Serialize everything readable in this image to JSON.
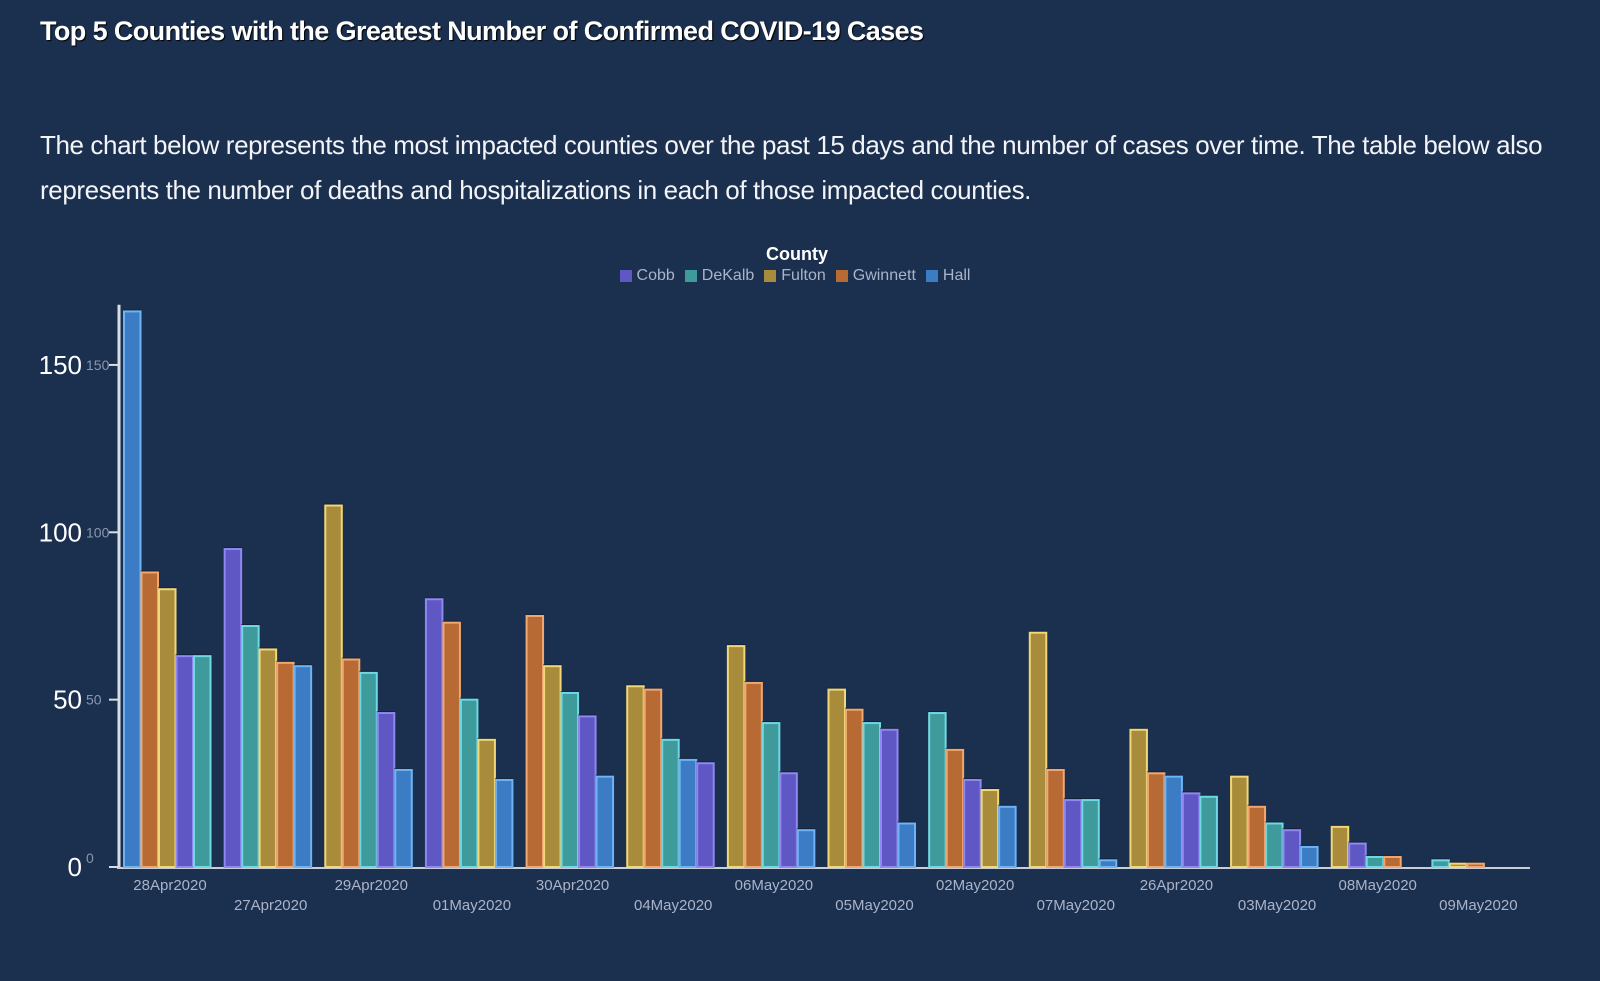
{
  "header": {
    "title": "Top 5 Counties with the Greatest Number of Confirmed COVID-19 Cases",
    "description": "The chart below represents the most impacted counties over the past 15 days and the number of cases over time. The table below also represents the number of deaths and hospitalizations in each of those impacted counties."
  },
  "legend": {
    "title": "County",
    "items": [
      {
        "name": "Cobb",
        "color": "#5f57c4"
      },
      {
        "name": "DeKalb",
        "color": "#3f9a9c"
      },
      {
        "name": "Fulton",
        "color": "#a88c3c"
      },
      {
        "name": "Gwinnett",
        "color": "#b86a35"
      },
      {
        "name": "Hall",
        "color": "#3b7cc4"
      }
    ]
  },
  "chart_data": {
    "type": "bar",
    "title": "Top 5 Counties with the Greatest Number of Confirmed COVID-19 Cases",
    "xlabel": "",
    "ylabel": "",
    "ylim": [
      0,
      170
    ],
    "yticks": [
      0,
      50,
      100,
      150
    ],
    "grid": false,
    "legend_position": "top-center",
    "legend_title": "County",
    "bars_sorted_descending_within_group": true,
    "categories": [
      "28Apr2020",
      "27Apr2020",
      "29Apr2020",
      "01May2020",
      "30Apr2020",
      "04May2020",
      "06May2020",
      "05May2020",
      "02May2020",
      "07May2020",
      "26Apr2020",
      "03May2020",
      "08May2020",
      "09May2020"
    ],
    "series": [
      {
        "name": "Cobb",
        "color": "#5f57c4",
        "stroke": "#8f88f0",
        "values": [
          63,
          95,
          46,
          80,
          45,
          31,
          28,
          41,
          26,
          20,
          22,
          11,
          7,
          0
        ]
      },
      {
        "name": "DeKalb",
        "color": "#3f9a9c",
        "stroke": "#6fd8e4",
        "values": [
          63,
          72,
          58,
          50,
          52,
          38,
          43,
          43,
          46,
          20,
          21,
          13,
          3,
          2
        ]
      },
      {
        "name": "Fulton",
        "color": "#a88c3c",
        "stroke": "#f0d878",
        "values": [
          83,
          65,
          108,
          38,
          60,
          54,
          66,
          53,
          23,
          70,
          41,
          27,
          12,
          1
        ]
      },
      {
        "name": "Gwinnett",
        "color": "#b86a35",
        "stroke": "#f0a870",
        "values": [
          88,
          61,
          62,
          73,
          75,
          53,
          55,
          47,
          35,
          29,
          28,
          18,
          3,
          1
        ]
      },
      {
        "name": "Hall",
        "color": "#3b7cc4",
        "stroke": "#6eb4f4",
        "values": [
          166,
          60,
          29,
          26,
          27,
          32,
          11,
          13,
          18,
          2,
          27,
          6,
          0,
          0
        ]
      }
    ]
  }
}
